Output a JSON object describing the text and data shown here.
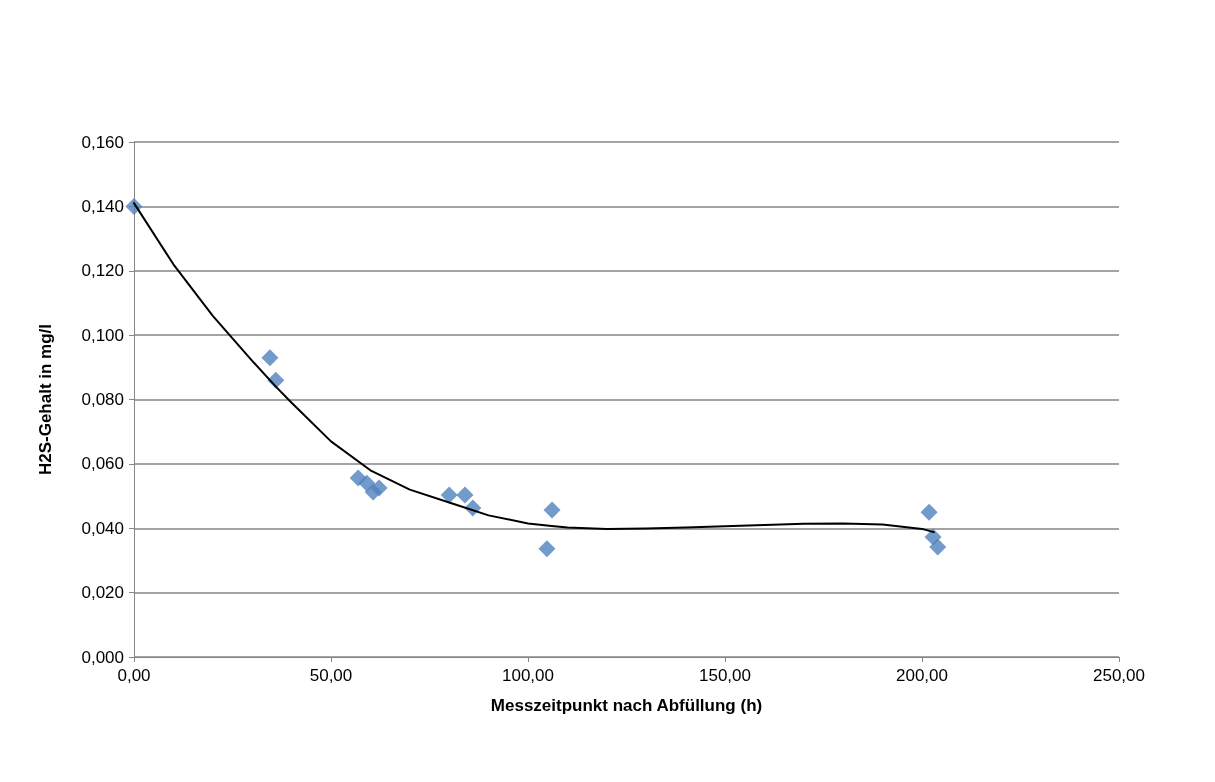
{
  "chart_data": {
    "type": "scatter",
    "xlabel": "Messzeitpunkt nach Abfüllung (h)",
    "ylabel": "H2S-Gehalt in mg/l",
    "series": [
      {
        "color": "#4f81bd",
        "marker": "diamond",
        "x": [
          0,
          34.5,
          36,
          56.9,
          59.1,
          60.7,
          62.2,
          80,
          84,
          86,
          106.1,
          104.8,
          201.8,
          202.8,
          204
        ],
        "values": [
          0.14,
          0.093,
          0.086,
          0.0556,
          0.054,
          0.0513,
          0.0525,
          0.0503,
          0.0503,
          0.0463,
          0.0457,
          0.0336,
          0.045,
          0.0373,
          0.0342
        ]
      },
      {
        "type": "line",
        "color": "#000000",
        "marker": "none",
        "line_style": "solid",
        "x": [
          0,
          10,
          20,
          30,
          36,
          40,
          50,
          60,
          70,
          80,
          90,
          100,
          106,
          110,
          120,
          130,
          140,
          150,
          160,
          170,
          180,
          190,
          200,
          203
        ],
        "values": [
          0.141,
          0.122,
          0.106,
          0.092,
          0.084,
          0.079,
          0.067,
          0.058,
          0.052,
          0.048,
          0.044,
          0.0415,
          0.0407,
          0.0402,
          0.0398,
          0.0399,
          0.0402,
          0.0406,
          0.041,
          0.0414,
          0.0415,
          0.0412,
          0.0398,
          0.0388
        ]
      }
    ],
    "xlim": [
      0,
      250
    ],
    "ylim": [
      0,
      0.16
    ],
    "xticks": [
      {
        "value": 0,
        "label": "0,00"
      },
      {
        "value": 50,
        "label": "50,00"
      },
      {
        "value": 100,
        "label": "100,00"
      },
      {
        "value": 150,
        "label": "150,00"
      },
      {
        "value": 200,
        "label": "200,00"
      },
      {
        "value": 250,
        "label": "250,00"
      }
    ],
    "yticks": [
      {
        "value": 0,
        "label": "0,000"
      },
      {
        "value": 0.02,
        "label": "0,020"
      },
      {
        "value": 0.04,
        "label": "0,040"
      },
      {
        "value": 0.06,
        "label": "0,060"
      },
      {
        "value": 0.08,
        "label": "0,080"
      },
      {
        "value": 0.1,
        "label": "0,100"
      },
      {
        "value": 0.12,
        "label": "0,120"
      },
      {
        "value": 0.14,
        "label": "0,140"
      },
      {
        "value": 0.16,
        "label": "0,160"
      }
    ],
    "grid": "y"
  }
}
